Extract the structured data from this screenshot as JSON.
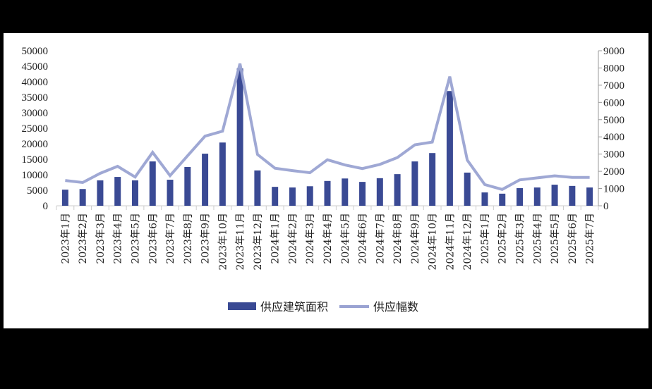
{
  "chart_data": {
    "type": "bar+line",
    "title": "",
    "categories": [
      "2023年1月",
      "2023年2月",
      "2023年3月",
      "2023年4月",
      "2023年5月",
      "2023年6月",
      "2023年7月",
      "2023年8月",
      "2023年9月",
      "2023年10月",
      "2023年11月",
      "2023年12月",
      "2024年1月",
      "2024年2月",
      "2024年3月",
      "2024年4月",
      "2024年5月",
      "2024年6月",
      "2024年7月",
      "2024年8月",
      "2024年9月",
      "2024年10月",
      "2024年11月",
      "2024年12月",
      "2025年1月",
      "2025年2月",
      "2025年3月",
      "2025年4月",
      "2025年5月",
      "2025年6月",
      "2025年7月"
    ],
    "series": [
      {
        "name": "供应建筑面积",
        "type": "bar",
        "axis": "left",
        "color": "#3a4a94",
        "values": [
          5200,
          5400,
          8200,
          9300,
          8200,
          14300,
          8400,
          12500,
          16800,
          20400,
          44300,
          11400,
          6100,
          5900,
          6300,
          8000,
          8800,
          7700,
          8900,
          10200,
          14300,
          17000,
          37000,
          10700,
          4300,
          3900,
          5700,
          5900,
          6800,
          6400,
          5900
        ]
      },
      {
        "name": "供应幅数",
        "type": "line",
        "axis": "right",
        "color": "#9aa3d2",
        "values": [
          1470,
          1350,
          1880,
          2290,
          1670,
          3100,
          1750,
          2900,
          4040,
          4330,
          8250,
          2980,
          2180,
          2040,
          1920,
          2670,
          2370,
          2160,
          2400,
          2800,
          3540,
          3700,
          7500,
          2650,
          1230,
          950,
          1500,
          1620,
          1740,
          1650,
          1650
        ]
      }
    ],
    "left_axis": {
      "min": 0,
      "max": 50000,
      "step": 5000,
      "ticks": [
        "0",
        "5000",
        "10000",
        "15000",
        "20000",
        "25000",
        "30000",
        "35000",
        "40000",
        "45000",
        "50000"
      ]
    },
    "right_axis": {
      "min": 0,
      "max": 9000,
      "step": 1000,
      "ticks": [
        "0",
        "1000",
        "2000",
        "3000",
        "4000",
        "5000",
        "6000",
        "7000",
        "8000",
        "9000"
      ]
    },
    "xlabel": "",
    "ylabel": "",
    "grid": false,
    "legend_position": "bottom"
  },
  "legend": {
    "bar_label": "供应建筑面积",
    "line_label": "供应幅数"
  }
}
